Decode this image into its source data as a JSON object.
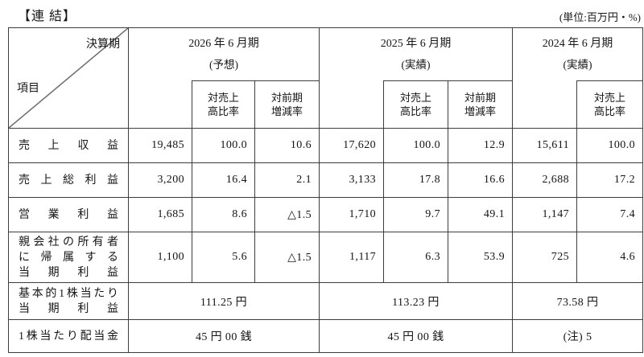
{
  "header": {
    "title": "【連 結】",
    "unit_note": "(単位:百万円・%)"
  },
  "table": {
    "corner": {
      "column_axis_label": "決算期",
      "row_axis_label": "項目"
    },
    "column_groups": [
      {
        "period": "2026 年 6 月期",
        "qualifier": "(予想)",
        "sub_headers": [
          "対売上\n高比率",
          "対前期\n増減率"
        ]
      },
      {
        "period": "2025 年 6 月期",
        "qualifier": "(実績)",
        "sub_headers": [
          "対売上\n高比率",
          "対前期\n増減率"
        ]
      },
      {
        "period": "2024 年 6 月期",
        "qualifier": "(実績)",
        "sub_headers": [
          "対売上\n高比率"
        ]
      }
    ],
    "rows": [
      {
        "label_lines": [
          "売上収益"
        ],
        "values": [
          "19,485",
          "100.0",
          "10.6",
          "17,620",
          "100.0",
          "12.9",
          "15,611",
          "100.0"
        ]
      },
      {
        "label_lines": [
          "売上総利益"
        ],
        "values": [
          "3,200",
          "16.4",
          "2.1",
          "3,133",
          "17.8",
          "16.6",
          "2,688",
          "17.2"
        ]
      },
      {
        "label_lines": [
          "営業利益"
        ],
        "values": [
          "1,685",
          "8.6",
          "△1.5",
          "1,710",
          "9.7",
          "49.1",
          "1,147",
          "7.4"
        ]
      },
      {
        "label_lines": [
          "親会社の所有者",
          "に帰属する",
          "当期利益"
        ],
        "values": [
          "1,100",
          "5.6",
          "△1.5",
          "1,117",
          "6.3",
          "53.9",
          "725",
          "4.6"
        ]
      },
      {
        "label_lines": [
          "基本的1株当たり",
          "当期利益"
        ],
        "values": [
          "111.25 円",
          "113.23 円",
          "73.58 円"
        ]
      },
      {
        "label_lines": [
          "1株当たり配当金"
        ],
        "values": [
          "45 円 00 銭",
          "45 円 00 銭",
          "(注) 5"
        ]
      }
    ]
  }
}
